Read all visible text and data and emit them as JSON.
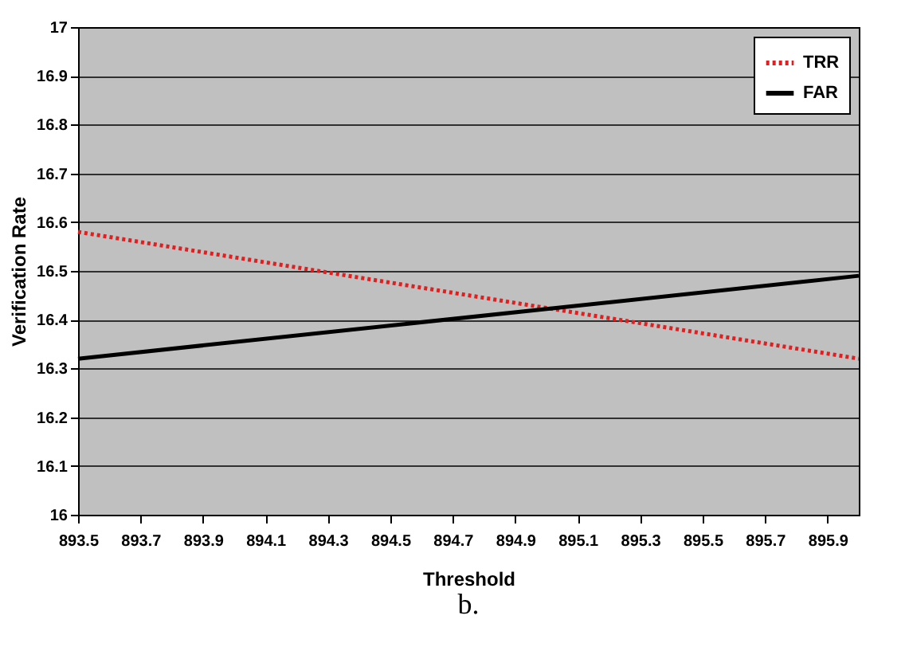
{
  "chart_data": {
    "type": "line",
    "xlabel": "Threshold",
    "ylabel": "Verification Rate",
    "x": [
      893.5,
      896.0
    ],
    "series": [
      {
        "name": "TRR",
        "color": "#e02020",
        "values": [
          16.58,
          16.32
        ],
        "line_style": "dotted"
      },
      {
        "name": "FAR",
        "color": "#000000",
        "values": [
          16.32,
          16.49
        ],
        "line_style": "solid"
      }
    ],
    "xlim": [
      893.5,
      896.0
    ],
    "xticks": [
      893.5,
      893.7,
      893.9,
      894.1,
      894.3,
      894.5,
      894.7,
      894.9,
      895.1,
      895.3,
      895.5,
      895.7,
      895.9
    ],
    "ylim": [
      16,
      17
    ],
    "yticks": [
      16,
      16.1,
      16.2,
      16.3,
      16.4,
      16.5,
      16.6,
      16.7,
      16.8,
      16.9,
      17
    ],
    "grid": "y",
    "legend": "top right",
    "marker": "none",
    "annotations": [
      "b."
    ]
  }
}
